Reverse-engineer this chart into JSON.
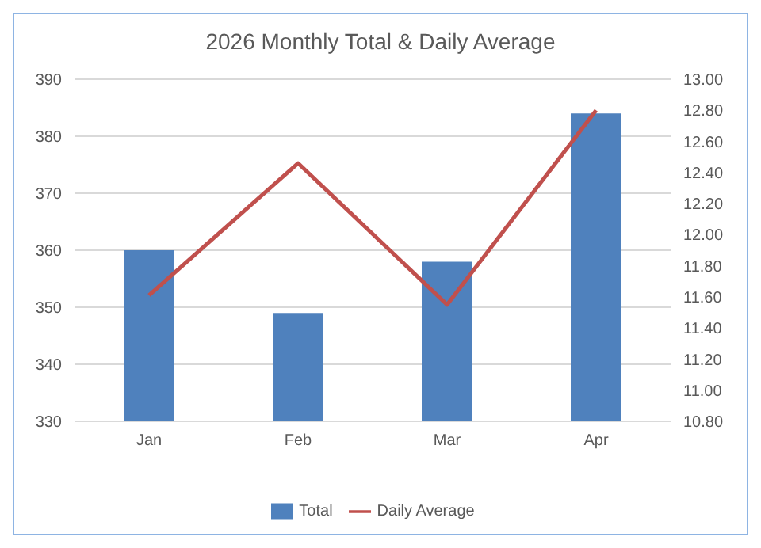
{
  "chart_data": {
    "type": "bar",
    "title": "2026 Monthly Total & Daily Average",
    "categories": [
      "Jan",
      "Feb",
      "Mar",
      "Apr"
    ],
    "series": [
      {
        "name": "Total",
        "color": "#4f81bd",
        "values": [
          360,
          349,
          358,
          384
        ]
      },
      {
        "name": "Daily Average",
        "type": "line",
        "axis": "y2",
        "color": "#c0504d",
        "values": [
          11.61,
          12.46,
          11.55,
          12.8
        ]
      }
    ],
    "ylim": [
      330,
      390
    ],
    "yticks": [
      330,
      340,
      350,
      360,
      370,
      380,
      390
    ],
    "y2lim": [
      10.8,
      13
    ],
    "y2ticks": [
      {
        "value": 10.8,
        "label": "10.80"
      },
      {
        "value": 11,
        "label": "11.00"
      },
      {
        "value": 11.2,
        "label": "11.20"
      },
      {
        "value": 11.4,
        "label": "11.40"
      },
      {
        "value": 11.6,
        "label": "11.60"
      },
      {
        "value": 11.8,
        "label": "11.80"
      },
      {
        "value": 12,
        "label": "12.00"
      },
      {
        "value": 12.2,
        "label": "12.20"
      },
      {
        "value": 12.4,
        "label": "12.40"
      },
      {
        "value": 12.6,
        "label": "12.60"
      },
      {
        "value": 12.8,
        "label": "12.80"
      },
      {
        "value": 13,
        "label": "13.00"
      }
    ],
    "grid": "y",
    "legend": "bottom",
    "marker": "none"
  }
}
